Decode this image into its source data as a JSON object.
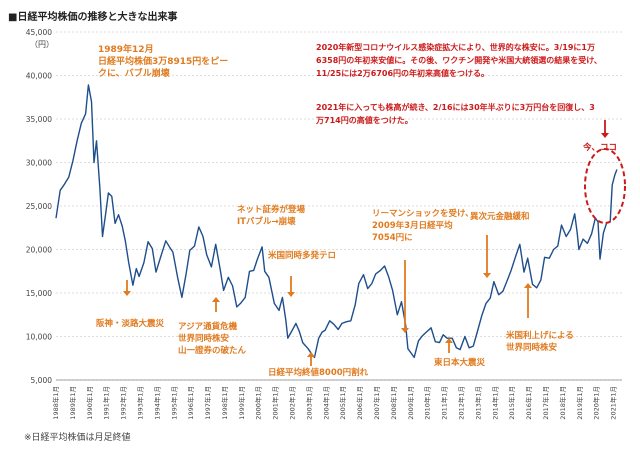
{
  "title": "■日経平均株価の推移と大きな出来事",
  "footnote": "※日経平均株価は月足終値",
  "colors": {
    "line": "#1f4e8c",
    "orange": "#e07b1f",
    "red": "#cc1a1a"
  },
  "chart_data": {
    "type": "line",
    "ylabel": "（円）",
    "ylim": [
      5000,
      45000
    ],
    "yticks": [
      "5,000",
      "10,000",
      "15,000",
      "20,000",
      "25,000",
      "30,000",
      "35,000",
      "40,000",
      "45,000"
    ],
    "xticks": [
      "1988年1月",
      "1989年1月",
      "1990年1月",
      "1991年1月",
      "1992年1月",
      "1993年1月",
      "1994年1月",
      "1995年1月",
      "1996年1月",
      "1997年1月",
      "1998年1月",
      "1999年1月",
      "2000年1月",
      "2001年1月",
      "2002年1月",
      "2003年1月",
      "2004年1月",
      "2005年1月",
      "2006年1月",
      "2007年1月",
      "2008年1月",
      "2009年1月",
      "2010年1月",
      "2011年1月",
      "2012年1月",
      "2013年1月",
      "2014年1月",
      "2015年1月",
      "2016年1月",
      "2017年1月",
      "2018年1月",
      "2019年1月",
      "2020年1月",
      "2021年1月"
    ],
    "series": [
      {
        "values": [
          [
            1988.0,
            23600
          ],
          [
            1988.25,
            26800
          ],
          [
            1988.5,
            27500
          ],
          [
            1988.75,
            28300
          ],
          [
            1989.0,
            30200
          ],
          [
            1989.25,
            32500
          ],
          [
            1989.5,
            34500
          ],
          [
            1989.75,
            35600
          ],
          [
            1989.92,
            38915
          ],
          [
            1990.1,
            37000
          ],
          [
            1990.25,
            30000
          ],
          [
            1990.4,
            32500
          ],
          [
            1990.6,
            27000
          ],
          [
            1990.75,
            21500
          ],
          [
            1990.92,
            23800
          ],
          [
            1991.1,
            26500
          ],
          [
            1991.3,
            26100
          ],
          [
            1991.5,
            23000
          ],
          [
            1991.7,
            24000
          ],
          [
            1991.92,
            22700
          ],
          [
            1992.1,
            21000
          ],
          [
            1992.3,
            18500
          ],
          [
            1992.55,
            15900
          ],
          [
            1992.75,
            17800
          ],
          [
            1992.92,
            16900
          ],
          [
            1993.2,
            18500
          ],
          [
            1993.45,
            20900
          ],
          [
            1993.7,
            20100
          ],
          [
            1993.92,
            17400
          ],
          [
            1994.2,
            19200
          ],
          [
            1994.5,
            21000
          ],
          [
            1994.75,
            20200
          ],
          [
            1994.92,
            19700
          ],
          [
            1995.2,
            16800
          ],
          [
            1995.45,
            14500
          ],
          [
            1995.7,
            17200
          ],
          [
            1995.92,
            19900
          ],
          [
            1996.2,
            20400
          ],
          [
            1996.45,
            22600
          ],
          [
            1996.7,
            21500
          ],
          [
            1996.92,
            19400
          ],
          [
            1997.2,
            18000
          ],
          [
            1997.45,
            20600
          ],
          [
            1997.7,
            17900
          ],
          [
            1997.92,
            15300
          ],
          [
            1998.2,
            16800
          ],
          [
            1998.45,
            15800
          ],
          [
            1998.7,
            13400
          ],
          [
            1998.92,
            13800
          ],
          [
            1999.2,
            14500
          ],
          [
            1999.45,
            17500
          ],
          [
            1999.7,
            17600
          ],
          [
            1999.92,
            18900
          ],
          [
            2000.2,
            20300
          ],
          [
            2000.35,
            17500
          ],
          [
            2000.6,
            16800
          ],
          [
            2000.92,
            13800
          ],
          [
            2001.2,
            13000
          ],
          [
            2001.4,
            14500
          ],
          [
            2001.6,
            11900
          ],
          [
            2001.72,
            9800
          ],
          [
            2001.92,
            10500
          ],
          [
            2002.2,
            11500
          ],
          [
            2002.4,
            10600
          ],
          [
            2002.6,
            9300
          ],
          [
            2002.92,
            8600
          ],
          [
            2003.2,
            7800
          ],
          [
            2003.3,
            7600
          ],
          [
            2003.55,
            9800
          ],
          [
            2003.75,
            10500
          ],
          [
            2003.92,
            10700
          ],
          [
            2004.2,
            11800
          ],
          [
            2004.45,
            11400
          ],
          [
            2004.7,
            10800
          ],
          [
            2004.92,
            11500
          ],
          [
            2005.2,
            11700
          ],
          [
            2005.45,
            11800
          ],
          [
            2005.7,
            13600
          ],
          [
            2005.92,
            16100
          ],
          [
            2006.2,
            17100
          ],
          [
            2006.45,
            15500
          ],
          [
            2006.7,
            16100
          ],
          [
            2006.92,
            17200
          ],
          [
            2007.2,
            17600
          ],
          [
            2007.45,
            18100
          ],
          [
            2007.7,
            16800
          ],
          [
            2007.92,
            15300
          ],
          [
            2008.2,
            12500
          ],
          [
            2008.45,
            14000
          ],
          [
            2008.7,
            11300
          ],
          [
            2008.83,
            8600
          ],
          [
            2009.2,
            7600
          ],
          [
            2009.45,
            9500
          ],
          [
            2009.7,
            10100
          ],
          [
            2009.92,
            10500
          ],
          [
            2010.2,
            11000
          ],
          [
            2010.45,
            9400
          ],
          [
            2010.7,
            9300
          ],
          [
            2010.92,
            10200
          ],
          [
            2011.15,
            9800
          ],
          [
            2011.45,
            9800
          ],
          [
            2011.7,
            8700
          ],
          [
            2011.92,
            8500
          ],
          [
            2012.2,
            10000
          ],
          [
            2012.45,
            8700
          ],
          [
            2012.7,
            8900
          ],
          [
            2012.92,
            10400
          ],
          [
            2013.2,
            12400
          ],
          [
            2013.45,
            13800
          ],
          [
            2013.7,
            14400
          ],
          [
            2013.92,
            16300
          ],
          [
            2014.2,
            14800
          ],
          [
            2014.45,
            15200
          ],
          [
            2014.7,
            16400
          ],
          [
            2014.92,
            17500
          ],
          [
            2015.2,
            19200
          ],
          [
            2015.45,
            20600
          ],
          [
            2015.7,
            17400
          ],
          [
            2015.92,
            19000
          ],
          [
            2016.2,
            16000
          ],
          [
            2016.45,
            15600
          ],
          [
            2016.7,
            16500
          ],
          [
            2016.92,
            19100
          ],
          [
            2017.2,
            19000
          ],
          [
            2017.45,
            20000
          ],
          [
            2017.7,
            20400
          ],
          [
            2017.92,
            22800
          ],
          [
            2018.2,
            21500
          ],
          [
            2018.45,
            22300
          ],
          [
            2018.7,
            24100
          ],
          [
            2018.85,
            21900
          ],
          [
            2018.95,
            20000
          ],
          [
            2019.2,
            21200
          ],
          [
            2019.45,
            20700
          ],
          [
            2019.7,
            21800
          ],
          [
            2019.92,
            23600
          ],
          [
            2020.08,
            23200
          ],
          [
            2020.2,
            18900
          ],
          [
            2020.4,
            21900
          ],
          [
            2020.6,
            23100
          ],
          [
            2020.8,
            23200
          ],
          [
            2020.92,
            27400
          ],
          [
            2021.08,
            28600
          ],
          [
            2021.2,
            29200
          ]
        ]
      }
    ]
  },
  "annotations": [
    {
      "lines": [
        "1989年12月",
        "日経平均株価3万8915円をピー",
        "クに、バブル崩壊"
      ],
      "color": "orange"
    },
    {
      "lines": [
        "阪神・淡路大震災"
      ],
      "color": "orange"
    },
    {
      "lines": [
        "アジア通貨危機",
        "世界同時株安",
        "山一證券の破たん"
      ],
      "color": "orange"
    },
    {
      "lines": [
        "ネット証券が登場",
        "ITバブル→崩壊"
      ],
      "color": "orange"
    },
    {
      "lines": [
        "米国同時多発テロ"
      ],
      "color": "orange"
    },
    {
      "lines": [
        "日経平均終値8000円割れ"
      ],
      "color": "orange"
    },
    {
      "lines": [
        "リーマンショックを受け、",
        "2009年3月日経平均",
        "7054円に"
      ],
      "color": "orange"
    },
    {
      "lines": [
        "東日本大震災"
      ],
      "color": "orange"
    },
    {
      "lines": [
        "異次元金融緩和"
      ],
      "color": "orange"
    },
    {
      "lines": [
        "米国利上げによる",
        "世界同時株安"
      ],
      "color": "orange"
    },
    {
      "lines": [
        "2020年新型コロナウイルス感染症拡大により、世界的な株安に。3/19に1万",
        "6358円の年初来安値に。その後、ワクチン開発や米国大統領選の結果を受け、",
        "11/25には2万6706円の年初来高値をつける。"
      ],
      "color": "red"
    },
    {
      "lines": [
        "2021年に入っても株高が続き、2/16には30年半ぶりに3万円台を回復し、3",
        "万714円の高値をつけた。"
      ],
      "color": "red"
    },
    {
      "lines": [
        "今、ココ"
      ],
      "color": "red"
    }
  ]
}
